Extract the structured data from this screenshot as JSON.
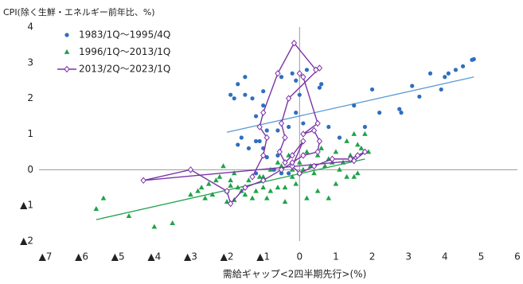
{
  "chart_data": {
    "type": "scatter",
    "y_label": "CPI(除く生鮮・エネルギー前年比、%)",
    "x_label": "需給ギャップ<2四半期先行>(%)",
    "xlim": [
      -7,
      6
    ],
    "xticks": [
      {
        "value": -7,
        "label": "▲7"
      },
      {
        "value": -6,
        "label": "▲6"
      },
      {
        "value": -5,
        "label": "▲5"
      },
      {
        "value": -4,
        "label": "▲4"
      },
      {
        "value": -3,
        "label": "▲3"
      },
      {
        "value": -2,
        "label": "▲2"
      },
      {
        "value": -1,
        "label": "▲1"
      },
      0,
      1,
      2,
      3,
      4,
      5,
      6
    ],
    "ylim": [
      -2,
      4
    ],
    "yticks": [
      {
        "value": -2,
        "label": "▲2"
      },
      {
        "value": -1,
        "label": "▲1"
      },
      0,
      1,
      2,
      3,
      4
    ],
    "series": [
      {
        "name": "1983/1Q～1995/4Q",
        "color": "#2e6fbd",
        "marker": "circle",
        "x": [
          4.8,
          4.75,
          4.5,
          4.3,
          4.1,
          4.0,
          3.6,
          3.9,
          3.1,
          3.3,
          2.8,
          2.75,
          2.2,
          2.0,
          1.5,
          0.8,
          1.1,
          1.8,
          0.6,
          0.55,
          0.2,
          0.1,
          -0.2,
          -0.5,
          -0.1,
          0,
          -0.3,
          -0.1,
          0.1,
          -0.3,
          -0.6,
          -0.9,
          -1.0,
          -1.3,
          -1.2,
          -1.5,
          -1.7,
          -1.8,
          -1.9,
          -1.5,
          -1.0,
          -1.2,
          -1.1,
          -1.0,
          -1.6,
          -1.7,
          -1.4,
          -0.9,
          -0.6,
          -0.4,
          -0.3,
          -0.5,
          -0.7,
          -1.2
        ],
        "values": [
          3.1,
          3.08,
          2.9,
          2.8,
          2.7,
          2.6,
          2.7,
          2.25,
          2.35,
          2.05,
          1.6,
          1.7,
          1.6,
          2.25,
          1.8,
          1.2,
          0.9,
          1.2,
          2.4,
          2.3,
          2.8,
          2.6,
          2.7,
          2.6,
          2.5,
          2.1,
          2.0,
          1.6,
          1.3,
          1.2,
          1.1,
          1.1,
          1.8,
          2.0,
          1.5,
          2.1,
          2.4,
          2.0,
          2.1,
          2.6,
          2.2,
          0.8,
          0.8,
          0.6,
          0.9,
          0.7,
          0.6,
          0.35,
          0.4,
          0.2,
          -0.1,
          -0.1,
          0.0,
          -0.1
        ]
      },
      {
        "name": "1996/1Q～2013/1Q",
        "color": "#1fa24a",
        "marker": "triangle",
        "x": [
          -5.6,
          -5.4,
          -4.7,
          -4.0,
          -3.5,
          -2.8,
          -2.6,
          -2.4,
          -2.0,
          -1.9,
          -1.7,
          -1.5,
          -1.3,
          -1.2,
          -1.0,
          -0.8,
          -0.6,
          -0.4,
          -0.2,
          0,
          0.2,
          0.5,
          0.8,
          1.0,
          1.3,
          1.5,
          1.6,
          1.2,
          1.4,
          1.7,
          1.5,
          1.8,
          1.6,
          1.0,
          0.8,
          0.5,
          0.3,
          0.1,
          -0.2,
          -0.5,
          -0.8,
          -1.1,
          -1.4,
          -1.8,
          -2.1,
          -2.2,
          -2.0,
          -2.3,
          -1.6,
          0.6,
          1.3,
          0.9,
          -0.3,
          0.2,
          -2.5,
          -3.0,
          1.9,
          -1.9,
          0.0,
          -0.1,
          0.4,
          0.7,
          -1.0,
          -0.6,
          1.1,
          -2.7,
          -0.9,
          -0.4,
          -1.8
        ],
        "values": [
          -1.1,
          -0.8,
          -1.3,
          -1.6,
          -1.5,
          -0.6,
          -0.8,
          -0.7,
          -0.6,
          -0.3,
          -0.5,
          -0.7,
          -0.8,
          -0.6,
          -0.5,
          -0.6,
          -0.5,
          -0.5,
          -0.2,
          -0.1,
          -0.8,
          -0.6,
          -0.8,
          -0.4,
          -0.2,
          -0.2,
          -0.1,
          0.2,
          0.4,
          0.6,
          1.0,
          1.0,
          0.7,
          0.5,
          0.3,
          0.4,
          0.1,
          0.0,
          0.0,
          0.1,
          0.0,
          -0.2,
          -0.3,
          -0.1,
          0.1,
          -0.2,
          -0.9,
          -0.3,
          -0.6,
          0.6,
          0.8,
          0.2,
          0.4,
          0.5,
          -0.4,
          -0.7,
          0.5,
          -0.45,
          0.2,
          -0.4,
          -0.1,
          0.1,
          -0.2,
          0.2,
          0.0,
          -0.5,
          -0.8,
          -0.9,
          -0.85
        ]
      },
      {
        "name": "2013/2Q～2023/1Q",
        "color": "#7a33a8",
        "marker": "diamond",
        "line": true,
        "x": [
          -1.3,
          -1.0,
          -0.9,
          -1.1,
          -1.0,
          -0.6,
          -0.15,
          0.45,
          0.55,
          -0.3,
          -0.5,
          -0.4,
          -0.55,
          -0.4,
          -0.2,
          0.1,
          -0.2,
          0.0,
          0.4,
          0.9,
          1.4,
          1.6,
          1.8,
          1.5,
          -4.3,
          -3.0,
          -2.0,
          -1.9,
          -1.5,
          -1.0,
          -0.5,
          -0.2,
          0.1,
          0.5,
          0.55,
          0.4,
          0.1,
          0.5,
          0.1,
          0.0
        ],
        "values": [
          -0.2,
          0.4,
          0.9,
          1.2,
          1.6,
          2.7,
          3.55,
          2.8,
          2.85,
          2.0,
          1.3,
          0.9,
          0.5,
          0.2,
          0.4,
          0.8,
          0.1,
          -0.1,
          0.1,
          0.3,
          0.3,
          0.4,
          0.5,
          0.25,
          -0.3,
          0.0,
          -0.6,
          -0.95,
          -0.5,
          -0.3,
          0.0,
          0.2,
          0.4,
          0.5,
          0.8,
          1.1,
          1.0,
          1.3,
          2.6,
          2.7
        ]
      }
    ],
    "trendlines": [
      {
        "color": "#5b9bd5",
        "x": [
          -2.0,
          4.8
        ],
        "y": [
          1.05,
          2.6
        ]
      },
      {
        "color": "#1fa24a",
        "x": [
          -5.6,
          1.8
        ],
        "y": [
          -1.4,
          0.3
        ]
      }
    ]
  }
}
